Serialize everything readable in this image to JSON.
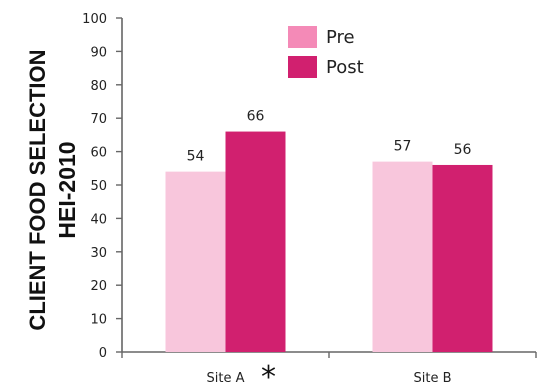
{
  "chart_data": {
    "type": "bar",
    "title": "",
    "xlabel": "",
    "ylabel": [
      "CLIENT FOOD SELECTION",
      "HEI-2010"
    ],
    "categories": [
      "Site A",
      "Site B"
    ],
    "category_marks": [
      "*",
      ""
    ],
    "series": [
      {
        "name": "Pre",
        "values": [
          54,
          57
        ],
        "color": "#f8c6dc"
      },
      {
        "name": "Post",
        "values": [
          66,
          56
        ],
        "color": "#d1206f"
      }
    ],
    "ylim": [
      0,
      100
    ],
    "yticks": [
      0,
      10,
      20,
      30,
      40,
      50,
      60,
      70,
      80,
      90,
      100
    ],
    "grid": false,
    "legend_position": "top-center",
    "legend_swatch_colors": [
      "#f48ab7",
      "#d1206f"
    ]
  }
}
